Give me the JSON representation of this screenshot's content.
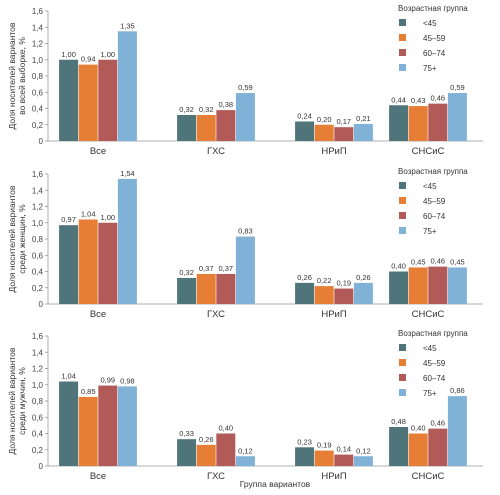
{
  "colors": {
    "<45": "#4f7479",
    "45-59": "#e67e35",
    "60-74": "#b25a57",
    "75+": "#7fb2d6"
  },
  "x_axis_title": "Группа вариантов",
  "chart_data": [
    {
      "type": "bar",
      "ylabel": [
        "Доля носителей вариантов",
        "во всей выборке, %"
      ],
      "ylim": [
        0,
        1.6
      ],
      "yticks": [
        "0",
        "0,2",
        "0,4",
        "0,6",
        "0,8",
        "1,0",
        "1,2",
        "1,4",
        "1,6"
      ],
      "categories": [
        "Все",
        "ГХС",
        "НРиП",
        "СНСиС"
      ],
      "legend_title": "Возрастная группа",
      "legend_position": "top-right",
      "grid": false,
      "series": [
        {
          "name": "<45",
          "values": [
            1.0,
            0.32,
            0.24,
            0.44
          ],
          "labels": [
            "1,00",
            "0,32",
            "0,24",
            "0,44"
          ]
        },
        {
          "name": "45–59",
          "values": [
            0.94,
            0.32,
            0.2,
            0.43
          ],
          "labels": [
            "0,94",
            "0,32",
            "0,20",
            "0,43"
          ]
        },
        {
          "name": "60–74",
          "values": [
            1.0,
            0.38,
            0.17,
            0.46
          ],
          "labels": [
            "1,00",
            "0,38",
            "0,17",
            "0,46"
          ]
        },
        {
          "name": "75+",
          "values": [
            1.35,
            0.59,
            0.21,
            0.59
          ],
          "labels": [
            "1,35",
            "0,59",
            "0,21",
            "0,59"
          ]
        }
      ]
    },
    {
      "type": "bar",
      "ylabel": [
        "Доля носителей вариантов",
        "среди женщин, %"
      ],
      "ylim": [
        0,
        1.6
      ],
      "yticks": [
        "0",
        "0,2",
        "0,4",
        "0,6",
        "0,8",
        "1,0",
        "1,2",
        "1,4",
        "1,6"
      ],
      "categories": [
        "Все",
        "ГХС",
        "НРиП",
        "СНСиС"
      ],
      "legend_title": "Возрастная группа",
      "legend_position": "top-right",
      "grid": false,
      "series": [
        {
          "name": "<45",
          "values": [
            0.97,
            0.32,
            0.26,
            0.4
          ],
          "labels": [
            "0,97",
            "0,32",
            "0,26",
            "0,40"
          ]
        },
        {
          "name": "45–59",
          "values": [
            1.04,
            0.37,
            0.22,
            0.45
          ],
          "labels": [
            "1,04",
            "0,37",
            "0,22",
            "0,45"
          ]
        },
        {
          "name": "60–74",
          "values": [
            1.0,
            0.37,
            0.19,
            0.46
          ],
          "labels": [
            "1,00",
            "0,37",
            "0,19",
            "0,46"
          ]
        },
        {
          "name": "75+",
          "values": [
            1.54,
            0.83,
            0.26,
            0.45
          ],
          "labels": [
            "1,54",
            "0,83",
            "0,26",
            "0,45"
          ]
        }
      ]
    },
    {
      "type": "bar",
      "ylabel": [
        "Доля носителей вариантов",
        "среди мужчин, %"
      ],
      "ylim": [
        0,
        1.6
      ],
      "yticks": [
        "0",
        "0,2",
        "0,4",
        "0,6",
        "0,8",
        "1,0",
        "1,2",
        "1,4",
        "1,6"
      ],
      "categories": [
        "Все",
        "ГХС",
        "НРиП",
        "СНСиС"
      ],
      "legend_title": "Возрастная группа",
      "legend_position": "top-right",
      "grid": false,
      "series": [
        {
          "name": "<45",
          "values": [
            1.04,
            0.33,
            0.23,
            0.48
          ],
          "labels": [
            "1,04",
            "0,33",
            "0,23",
            "0,48"
          ]
        },
        {
          "name": "45–59",
          "values": [
            0.85,
            0.26,
            0.19,
            0.4
          ],
          "labels": [
            "0,85",
            "0,26",
            "0,19",
            "0,40"
          ]
        },
        {
          "name": "60–74",
          "values": [
            0.99,
            0.4,
            0.14,
            0.46
          ],
          "labels": [
            "0,99",
            "0,40",
            "0,14",
            "0,46"
          ]
        },
        {
          "name": "75+",
          "values": [
            0.98,
            0.12,
            0.12,
            0.86
          ],
          "labels": [
            "0,98",
            "0,12",
            "0,12",
            "0,86"
          ]
        }
      ]
    }
  ]
}
